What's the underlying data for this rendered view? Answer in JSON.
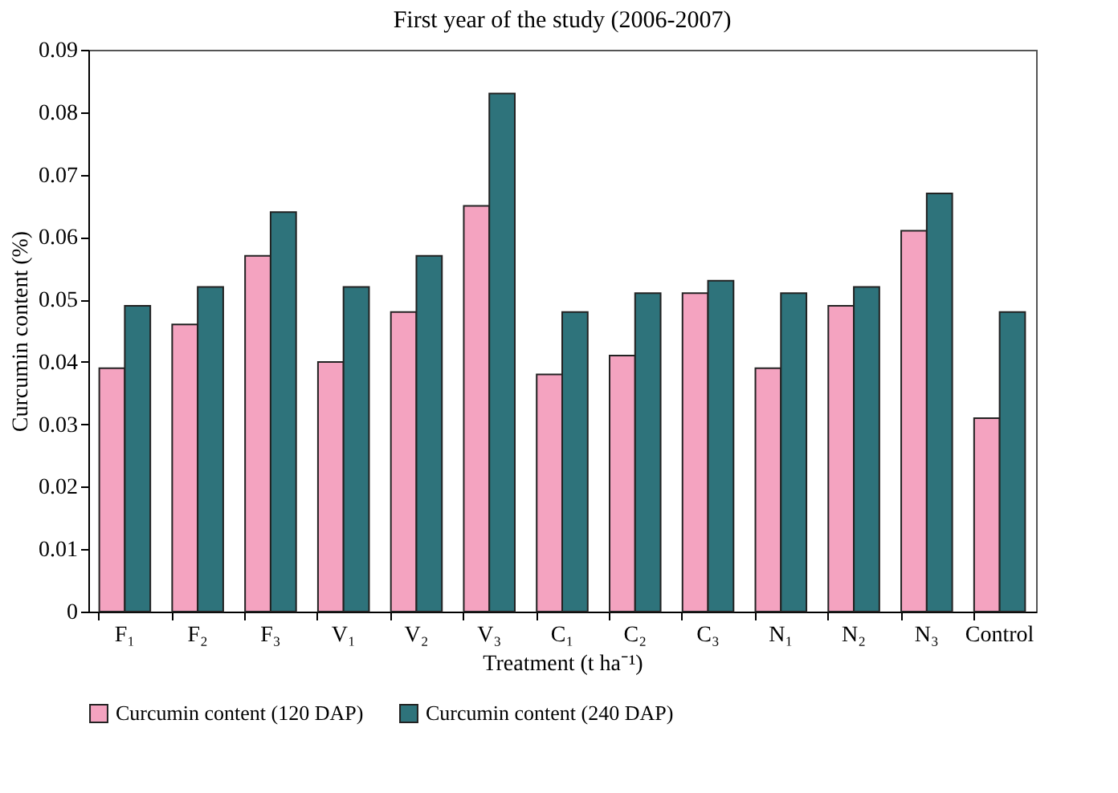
{
  "chart_data": {
    "type": "bar",
    "title": "First year of the study (2006-2007)",
    "xlabel": "Treatment (t ha⁻¹)",
    "ylabel": "Curcumin content (%)",
    "categories": [
      "F₁",
      "F₂",
      "F₃",
      "V₁",
      "V₂",
      "V₃",
      "C₁",
      "C₂",
      "C₃",
      "N₁",
      "N₂",
      "N₃",
      "Control"
    ],
    "series": [
      {
        "name": "Curcumin content (120 DAP)",
        "color": "#f4a3c0",
        "values": [
          0.039,
          0.046,
          0.057,
          0.04,
          0.048,
          0.065,
          0.038,
          0.041,
          0.051,
          0.039,
          0.049,
          0.061,
          0.031
        ]
      },
      {
        "name": "Curcumin content (240 DAP)",
        "color": "#2e737b",
        "values": [
          0.049,
          0.052,
          0.064,
          0.052,
          0.057,
          0.083,
          0.048,
          0.051,
          0.053,
          0.051,
          0.052,
          0.067,
          0.048
        ]
      }
    ],
    "ylim": [
      0,
      0.09
    ],
    "yticks": [
      0,
      0.01,
      0.02,
      0.03,
      0.04,
      0.05,
      0.06,
      0.07,
      0.08,
      0.09
    ],
    "grid": false,
    "legend": "bottom"
  }
}
